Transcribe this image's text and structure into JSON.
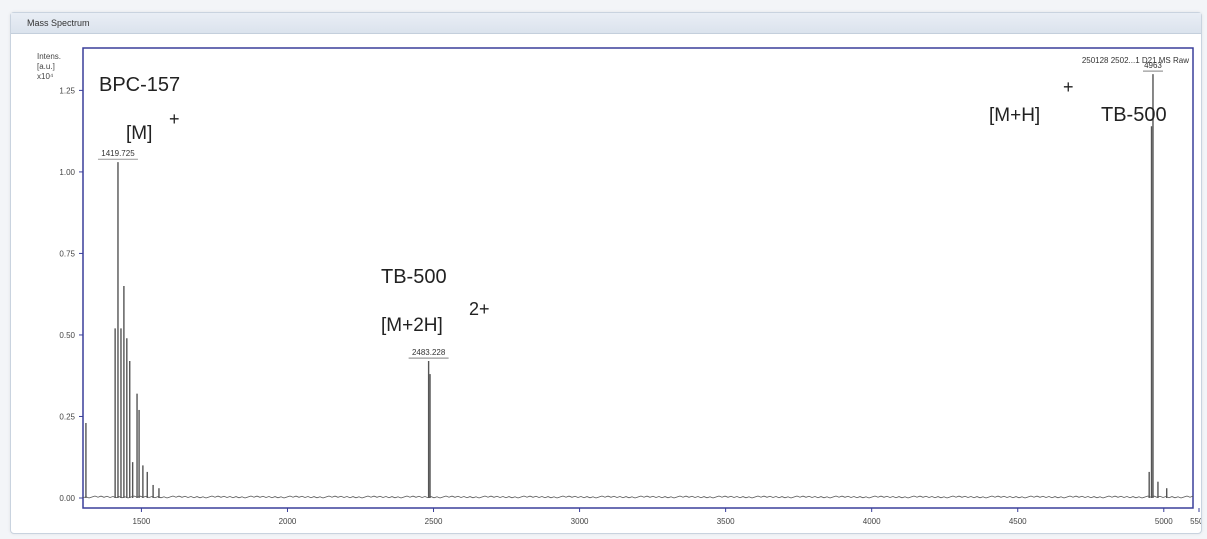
{
  "window": {
    "title": "Mass Spectrum"
  },
  "chart_data": {
    "type": "line",
    "ylabel_lines": [
      "Intens.",
      "[a.u.]",
      "x10⁴"
    ],
    "xlim": [
      1300,
      5100
    ],
    "ylim": [
      0,
      1.38
    ],
    "x_ticks": [
      "1500",
      "2000",
      "2500",
      "3000",
      "3500",
      "4000",
      "4500",
      "5000",
      "5500"
    ],
    "y_ticks": [
      "0.00",
      "0.25",
      "0.50",
      "0.75",
      "1.00",
      "1.25"
    ],
    "x_tick_values": [
      1500,
      2000,
      2500,
      3000,
      3500,
      4000,
      4500,
      5000,
      5500
    ],
    "y_tick_values": [
      0,
      0.25,
      0.5,
      0.75,
      1.0,
      1.25
    ],
    "file_label": "250128 2502...1 D21 MS Raw",
    "peaks": [
      {
        "x": 1310,
        "y": 0.23
      },
      {
        "x": 1410,
        "y": 0.52
      },
      {
        "x": 1419.725,
        "y": 1.03,
        "label": "1419.725"
      },
      {
        "x": 1430,
        "y": 0.52
      },
      {
        "x": 1440,
        "y": 0.65
      },
      {
        "x": 1450,
        "y": 0.49
      },
      {
        "x": 1460,
        "y": 0.42
      },
      {
        "x": 1470,
        "y": 0.11
      },
      {
        "x": 1485,
        "y": 0.32
      },
      {
        "x": 1492,
        "y": 0.27
      },
      {
        "x": 1505,
        "y": 0.1
      },
      {
        "x": 1520,
        "y": 0.08
      },
      {
        "x": 1540,
        "y": 0.04
      },
      {
        "x": 1560,
        "y": 0.03
      },
      {
        "x": 2483.228,
        "y": 0.42,
        "label": "2483.228"
      },
      {
        "x": 2488,
        "y": 0.38
      },
      {
        "x": 4963,
        "y": 1.3,
        "label": "4963"
      },
      {
        "x": 4958,
        "y": 1.14
      },
      {
        "x": 4950,
        "y": 0.08
      },
      {
        "x": 4980,
        "y": 0.05
      },
      {
        "x": 5010,
        "y": 0.03
      }
    ],
    "annotations": [
      {
        "text": "BPC-157"
      },
      {
        "text": "[M]",
        "sup": "+"
      },
      {
        "text": "TB-500"
      },
      {
        "text": "[M+2H]",
        "sup": "2+"
      },
      {
        "text": "[M+H]",
        "sup": "+"
      },
      {
        "text": "TB-500"
      }
    ]
  },
  "colors": {
    "frame": "#3a3f9a",
    "trace": "#555555"
  }
}
